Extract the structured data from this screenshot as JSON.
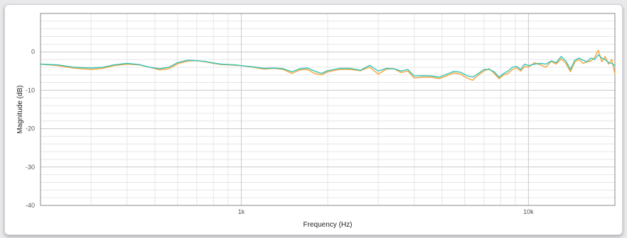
{
  "chart_data": {
    "type": "line",
    "xlabel": "Frequency (Hz)",
    "ylabel": "Magnitude (dB)",
    "x_scale": "log",
    "xlim": [
      200,
      20000
    ],
    "ylim": [
      -40,
      10
    ],
    "grid": true,
    "legend": "none",
    "x_ticks": [
      {
        "value": 1000,
        "label": "1k"
      },
      {
        "value": 10000,
        "label": "10k"
      }
    ],
    "y_ticks": [
      {
        "value": 0,
        "label": "0"
      },
      {
        "value": -10,
        "label": "-10"
      },
      {
        "value": -20,
        "label": "-20"
      },
      {
        "value": -30,
        "label": "-30"
      },
      {
        "value": -40,
        "label": "-40"
      }
    ],
    "colors": {
      "series_1": "#f5a33a",
      "series_2": "#35c3b5",
      "grid_major": "#c9c9c9",
      "grid_minor": "#e6e6e6",
      "axis": "#8a8a8a"
    },
    "series": [
      {
        "color": "#f5a33a",
        "x": [
          200,
          230,
          260,
          300,
          330,
          360,
          400,
          440,
          480,
          520,
          560,
          600,
          650,
          700,
          750,
          800,
          850,
          900,
          950,
          1000,
          1100,
          1200,
          1300,
          1400,
          1500,
          1600,
          1700,
          1800,
          1900,
          2000,
          2200,
          2400,
          2600,
          2800,
          3000,
          3200,
          3400,
          3600,
          3800,
          4000,
          4300,
          4600,
          4900,
          5200,
          5500,
          5800,
          6100,
          6400,
          6700,
          7000,
          7300,
          7600,
          7900,
          8200,
          8500,
          8800,
          9100,
          9400,
          9700,
          10000,
          10500,
          11000,
          11500,
          12000,
          12500,
          13000,
          13500,
          14000,
          14500,
          15000,
          15500,
          16000,
          16500,
          17000,
          17500,
          18000,
          18500,
          19000,
          19500,
          20000
        ],
        "y": [
          -3.2,
          -3.6,
          -4.2,
          -4.6,
          -4.3,
          -3.6,
          -3.2,
          -3.4,
          -4.0,
          -4.7,
          -4.4,
          -3.1,
          -2.4,
          -2.3,
          -2.6,
          -3.0,
          -3.3,
          -3.4,
          -3.5,
          -3.6,
          -4.0,
          -4.5,
          -4.3,
          -4.6,
          -5.6,
          -4.7,
          -4.6,
          -5.6,
          -6.0,
          -5.2,
          -4.6,
          -4.6,
          -4.9,
          -4.0,
          -5.8,
          -4.5,
          -4.4,
          -5.4,
          -5.0,
          -6.8,
          -6.6,
          -6.6,
          -7.0,
          -6.2,
          -5.5,
          -5.8,
          -6.8,
          -7.4,
          -6.0,
          -5.0,
          -4.4,
          -5.6,
          -7.0,
          -6.0,
          -5.6,
          -4.6,
          -4.2,
          -5.0,
          -3.8,
          -4.0,
          -2.8,
          -3.4,
          -4.0,
          -2.5,
          -3.2,
          -1.8,
          -3.0,
          -5.2,
          -2.6,
          -2.0,
          -3.0,
          -2.6,
          -2.4,
          -1.4,
          0.4,
          -2.6,
          -1.2,
          -3.2,
          -2.0,
          -5.8
        ]
      },
      {
        "color": "#35c3b5",
        "x": [
          200,
          230,
          260,
          300,
          330,
          360,
          400,
          440,
          480,
          520,
          560,
          600,
          650,
          700,
          750,
          800,
          850,
          900,
          950,
          1000,
          1100,
          1200,
          1300,
          1400,
          1500,
          1600,
          1700,
          1800,
          1900,
          2000,
          2200,
          2400,
          2600,
          2800,
          3000,
          3200,
          3400,
          3600,
          3800,
          4000,
          4300,
          4600,
          4900,
          5200,
          5500,
          5800,
          6100,
          6400,
          6700,
          7000,
          7300,
          7600,
          7900,
          8200,
          8500,
          8800,
          9100,
          9400,
          9700,
          10000,
          10500,
          11000,
          11500,
          12000,
          12500,
          13000,
          13500,
          14000,
          14500,
          15000,
          15500,
          16000,
          16500,
          17000,
          17500,
          18000,
          18500,
          19000,
          19500,
          20000
        ],
        "y": [
          -3.2,
          -3.4,
          -4.0,
          -4.2,
          -4.0,
          -3.4,
          -3.0,
          -3.3,
          -4.0,
          -4.4,
          -4.0,
          -2.8,
          -2.2,
          -2.3,
          -2.5,
          -2.9,
          -3.2,
          -3.3,
          -3.4,
          -3.6,
          -3.9,
          -4.3,
          -4.2,
          -4.4,
          -5.2,
          -4.4,
          -4.2,
          -5.0,
          -5.6,
          -4.9,
          -4.3,
          -4.3,
          -4.8,
          -3.5,
          -5.0,
          -4.3,
          -4.4,
          -5.0,
          -4.6,
          -6.3,
          -6.2,
          -6.3,
          -6.6,
          -5.8,
          -5.1,
          -5.3,
          -6.2,
          -6.6,
          -5.6,
          -4.6,
          -4.6,
          -5.2,
          -6.6,
          -5.6,
          -5.0,
          -4.0,
          -3.8,
          -4.6,
          -3.2,
          -3.6,
          -3.2,
          -3.0,
          -3.2,
          -2.4,
          -2.8,
          -1.2,
          -2.4,
          -4.6,
          -2.2,
          -1.6,
          -2.2,
          -2.6,
          -1.6,
          -2.0,
          -0.8,
          -1.6,
          -2.0,
          -2.8,
          -3.0,
          -3.6
        ]
      }
    ]
  }
}
